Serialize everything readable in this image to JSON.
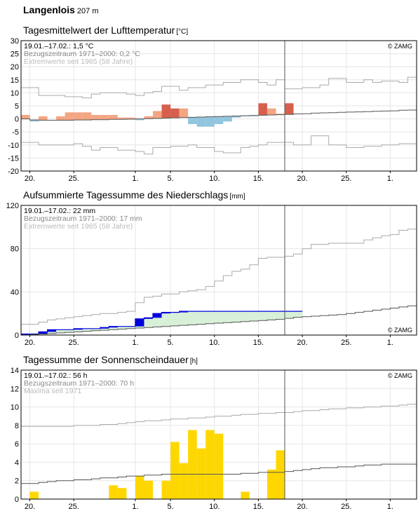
{
  "header": {
    "station": "Langenlois",
    "altitude": "207 m"
  },
  "panels": {
    "temp": {
      "title": "Tagesmittelwert der Lufttemperatur",
      "unit": "[°C]",
      "info": [
        "19.01.–17.02.: 1,5 °C",
        "Bezugszeitraum 1971–2000: 0,2 °C",
        "Extremwerte seit 1965 (58 Jahre)"
      ],
      "credit": "© ZAMG"
    },
    "precip": {
      "title": "Aufsummierte Tagessumme des Niederschlags",
      "unit": "[mm]",
      "info": [
        "19.01.–17.02.: 22 mm",
        "Bezugszeitraum 1971–2000: 17 mm",
        "Extremwerte seit 1965 (58 Jahre)"
      ],
      "credit": "© ZAMG"
    },
    "sun": {
      "title": "Tagessumme der Sonnenscheindauer",
      "unit": "[h]",
      "info": [
        "19.01.–17.02.: 56 h",
        "Bezugszeitraum 1971–2000: 70 h",
        "Maxima seit 1971"
      ],
      "credit": "© ZAMG"
    }
  },
  "colors": {
    "temp_warm": "#f4a582",
    "temp_warm_dark": "#d6604d",
    "temp_cold": "#92c5de",
    "precip_bar": "#0000dd",
    "precip_fill": "#d8f0d8",
    "sun_bar": "#ffd700",
    "ref_line": "#555555",
    "extreme_line": "#aaaaaa",
    "grid": "#e6e6e6"
  },
  "chart_data": [
    {
      "type": "bar",
      "title": "Tagesmittelwert der Lufttemperatur",
      "ylabel": "°C",
      "ylim": [
        -20,
        30
      ],
      "yticks": [
        -20,
        -15,
        -10,
        -5,
        0,
        5,
        10,
        15,
        20,
        25,
        30
      ],
      "x_tick_labels": [
        "20.",
        "25.",
        "1.",
        "5.",
        "10.",
        "15.",
        "20.",
        "25.",
        "1."
      ],
      "x_tick_days": [
        1,
        6,
        13,
        17,
        22,
        27,
        32,
        37,
        42
      ],
      "current_day": 30,
      "series": [
        {
          "name": "daily_mean",
          "values": [
            1.5,
            -1.0,
            1.0,
            -0.5,
            1.0,
            2.5,
            2.5,
            2.5,
            1.5,
            1.5,
            1.5,
            0.5,
            0.5,
            -0.5,
            1.0,
            3.0,
            5.5,
            4.0,
            4.0,
            -2.0,
            -3.0,
            -3.0,
            -2.0,
            -1.0,
            0.5,
            1.0,
            1.0,
            6.0,
            4.0,
            2.0,
            6.0,
            2.0
          ]
        },
        {
          "name": "reference_mean",
          "values": [
            0.0,
            -0.4,
            -0.5,
            -0.5,
            -0.5,
            -0.5,
            -0.4,
            -0.4,
            -0.3,
            -0.3,
            -0.2,
            -0.2,
            -0.1,
            0.0,
            0.1,
            0.2,
            0.3,
            0.4,
            0.5,
            0.6,
            0.7,
            0.8,
            0.9,
            1.0,
            1.1,
            1.2,
            1.3,
            1.4,
            1.5,
            1.6,
            1.7,
            1.9,
            2.0,
            2.2,
            2.3,
            2.4,
            2.5,
            2.6,
            2.7,
            2.8,
            2.9,
            3.0,
            3.1,
            3.3,
            3.4
          ]
        },
        {
          "name": "extreme_max",
          "values": [
            12.0,
            12.0,
            9.0,
            9.0,
            9.0,
            8.5,
            8.5,
            8.0,
            9.5,
            10.0,
            10.0,
            10.0,
            9.5,
            9.0,
            10.0,
            10.5,
            12.5,
            12.5,
            11.0,
            12.0,
            12.0,
            13.0,
            13.0,
            14.0,
            14.0,
            15.0,
            15.0,
            14.0,
            13.0,
            15.0,
            11.5,
            11.5,
            12.0,
            12.0,
            13.0,
            15.5,
            15.5,
            14.0,
            14.0,
            15.0,
            14.0,
            14.5,
            14.5,
            14.0,
            16.0
          ]
        },
        {
          "name": "extreme_min",
          "values": [
            -9.0,
            -9.0,
            -10.0,
            -10.0,
            -10.0,
            -10.0,
            -9.5,
            -10.5,
            -12.0,
            -11.0,
            -11.0,
            -12.0,
            -12.0,
            -12.5,
            -13.5,
            -11.0,
            -11.0,
            -10.5,
            -10.5,
            -10.0,
            -11.0,
            -11.0,
            -12.5,
            -13.0,
            -13.0,
            -11.0,
            -10.5,
            -10.0,
            -9.0,
            -9.0,
            -9.0,
            -10.0,
            -10.0,
            -6.5,
            -6.5,
            -10.0,
            -10.0,
            -11.0,
            -11.0,
            -10.5,
            -10.5,
            -10.0,
            -10.0,
            -9.5,
            -9.5
          ]
        }
      ]
    },
    {
      "type": "area",
      "title": "Aufsummierte Tagessumme des Niederschlags",
      "ylabel": "mm",
      "ylim": [
        0,
        120
      ],
      "yticks": [
        0,
        40,
        80,
        120
      ],
      "x_tick_labels": [
        "20.",
        "25.",
        "1.",
        "5.",
        "10.",
        "15.",
        "20.",
        "25.",
        "1."
      ],
      "x_tick_days": [
        1,
        6,
        13,
        17,
        22,
        27,
        32,
        37,
        42
      ],
      "current_day": 30,
      "series": [
        {
          "name": "cumulative",
          "values": [
            1,
            1,
            3,
            5,
            5,
            5,
            6,
            6,
            6,
            7,
            8,
            8,
            8,
            15,
            16,
            20,
            21,
            21,
            22,
            22,
            22,
            22,
            22,
            22,
            22,
            22,
            22,
            22,
            22,
            22,
            22,
            22
          ]
        },
        {
          "name": "reference_cumulative",
          "values": [
            0,
            0.5,
            1,
            1.5,
            2,
            2.5,
            3,
            3.5,
            4,
            4.5,
            5,
            5.5,
            6,
            6.5,
            7,
            7.5,
            8,
            8.5,
            9,
            9.5,
            10,
            10.5,
            11,
            11.5,
            12,
            12.5,
            13,
            13.5,
            14,
            14.5,
            15.5,
            16.5,
            17,
            17.5,
            18,
            18.5,
            19,
            20,
            21,
            22,
            23,
            24,
            25,
            26,
            27
          ]
        },
        {
          "name": "extreme_max",
          "values": [
            10,
            10,
            12,
            14,
            15,
            16,
            17,
            18,
            19,
            20,
            20,
            21,
            22,
            30,
            35,
            36,
            38,
            38,
            40,
            41,
            42,
            45,
            50,
            55,
            59,
            61,
            65,
            71,
            72,
            72,
            73,
            75,
            80,
            84,
            84,
            85,
            85,
            85,
            85,
            88,
            90,
            92,
            93,
            97,
            98
          ]
        },
        {
          "name": "extreme_min",
          "values": [
            0,
            0,
            0,
            0,
            0,
            0,
            0,
            0,
            0,
            0,
            0,
            0,
            0,
            0,
            0,
            0,
            0,
            0,
            0,
            0,
            0,
            0,
            0,
            0,
            0,
            0,
            0,
            0,
            0,
            0,
            0,
            0,
            0,
            0,
            0,
            0,
            0,
            0,
            0,
            0,
            0,
            0,
            0,
            0,
            0
          ]
        }
      ]
    },
    {
      "type": "bar",
      "title": "Tagessumme der Sonnenscheindauer",
      "ylabel": "h",
      "ylim": [
        0,
        14
      ],
      "yticks": [
        0,
        2,
        4,
        6,
        8,
        10,
        12,
        14
      ],
      "x_tick_labels": [
        "20.",
        "25.",
        "1.",
        "5.",
        "10.",
        "15.",
        "20.",
        "25.",
        "1."
      ],
      "x_tick_days": [
        1,
        6,
        13,
        17,
        22,
        27,
        32,
        37,
        42
      ],
      "current_day": 30,
      "series": [
        {
          "name": "daily_sunshine",
          "values": [
            0.0,
            0.8,
            0.0,
            0.0,
            0.0,
            0.0,
            0.0,
            0.0,
            0.0,
            0.0,
            1.5,
            1.2,
            0.0,
            2.5,
            2.0,
            0.0,
            2.0,
            6.2,
            3.9,
            7.5,
            5.5,
            7.5,
            7.1,
            0.0,
            0.0,
            0.8,
            0.0,
            0.0,
            3.2,
            5.3,
            0.0,
            0.0
          ]
        },
        {
          "name": "reference_mean",
          "values": [
            1.7,
            1.7,
            1.8,
            1.9,
            2.0,
            2.0,
            2.1,
            2.1,
            2.2,
            2.3,
            2.3,
            2.4,
            2.5,
            2.5,
            2.6,
            2.6,
            2.7,
            2.7,
            2.7,
            2.7,
            2.7,
            2.7,
            2.7,
            2.7,
            2.7,
            2.8,
            2.8,
            2.9,
            2.9,
            2.9,
            3.0,
            3.1,
            3.2,
            3.3,
            3.4,
            3.4,
            3.5,
            3.5,
            3.6,
            3.7,
            3.7,
            3.8,
            3.8,
            3.8,
            3.8
          ]
        },
        {
          "name": "maxima",
          "values": [
            7.9,
            7.9,
            7.9,
            7.9,
            7.9,
            7.9,
            8.0,
            8.0,
            8.0,
            8.1,
            8.1,
            8.2,
            8.3,
            8.4,
            8.5,
            8.5,
            8.6,
            8.7,
            8.7,
            8.8,
            8.8,
            8.9,
            9.0,
            9.0,
            9.1,
            9.2,
            9.2,
            9.3,
            9.3,
            9.4,
            9.4,
            9.5,
            9.6,
            9.6,
            9.7,
            9.8,
            9.8,
            9.9,
            9.9,
            10.0,
            10.0,
            10.1,
            10.1,
            10.2,
            10.3
          ]
        }
      ]
    }
  ]
}
